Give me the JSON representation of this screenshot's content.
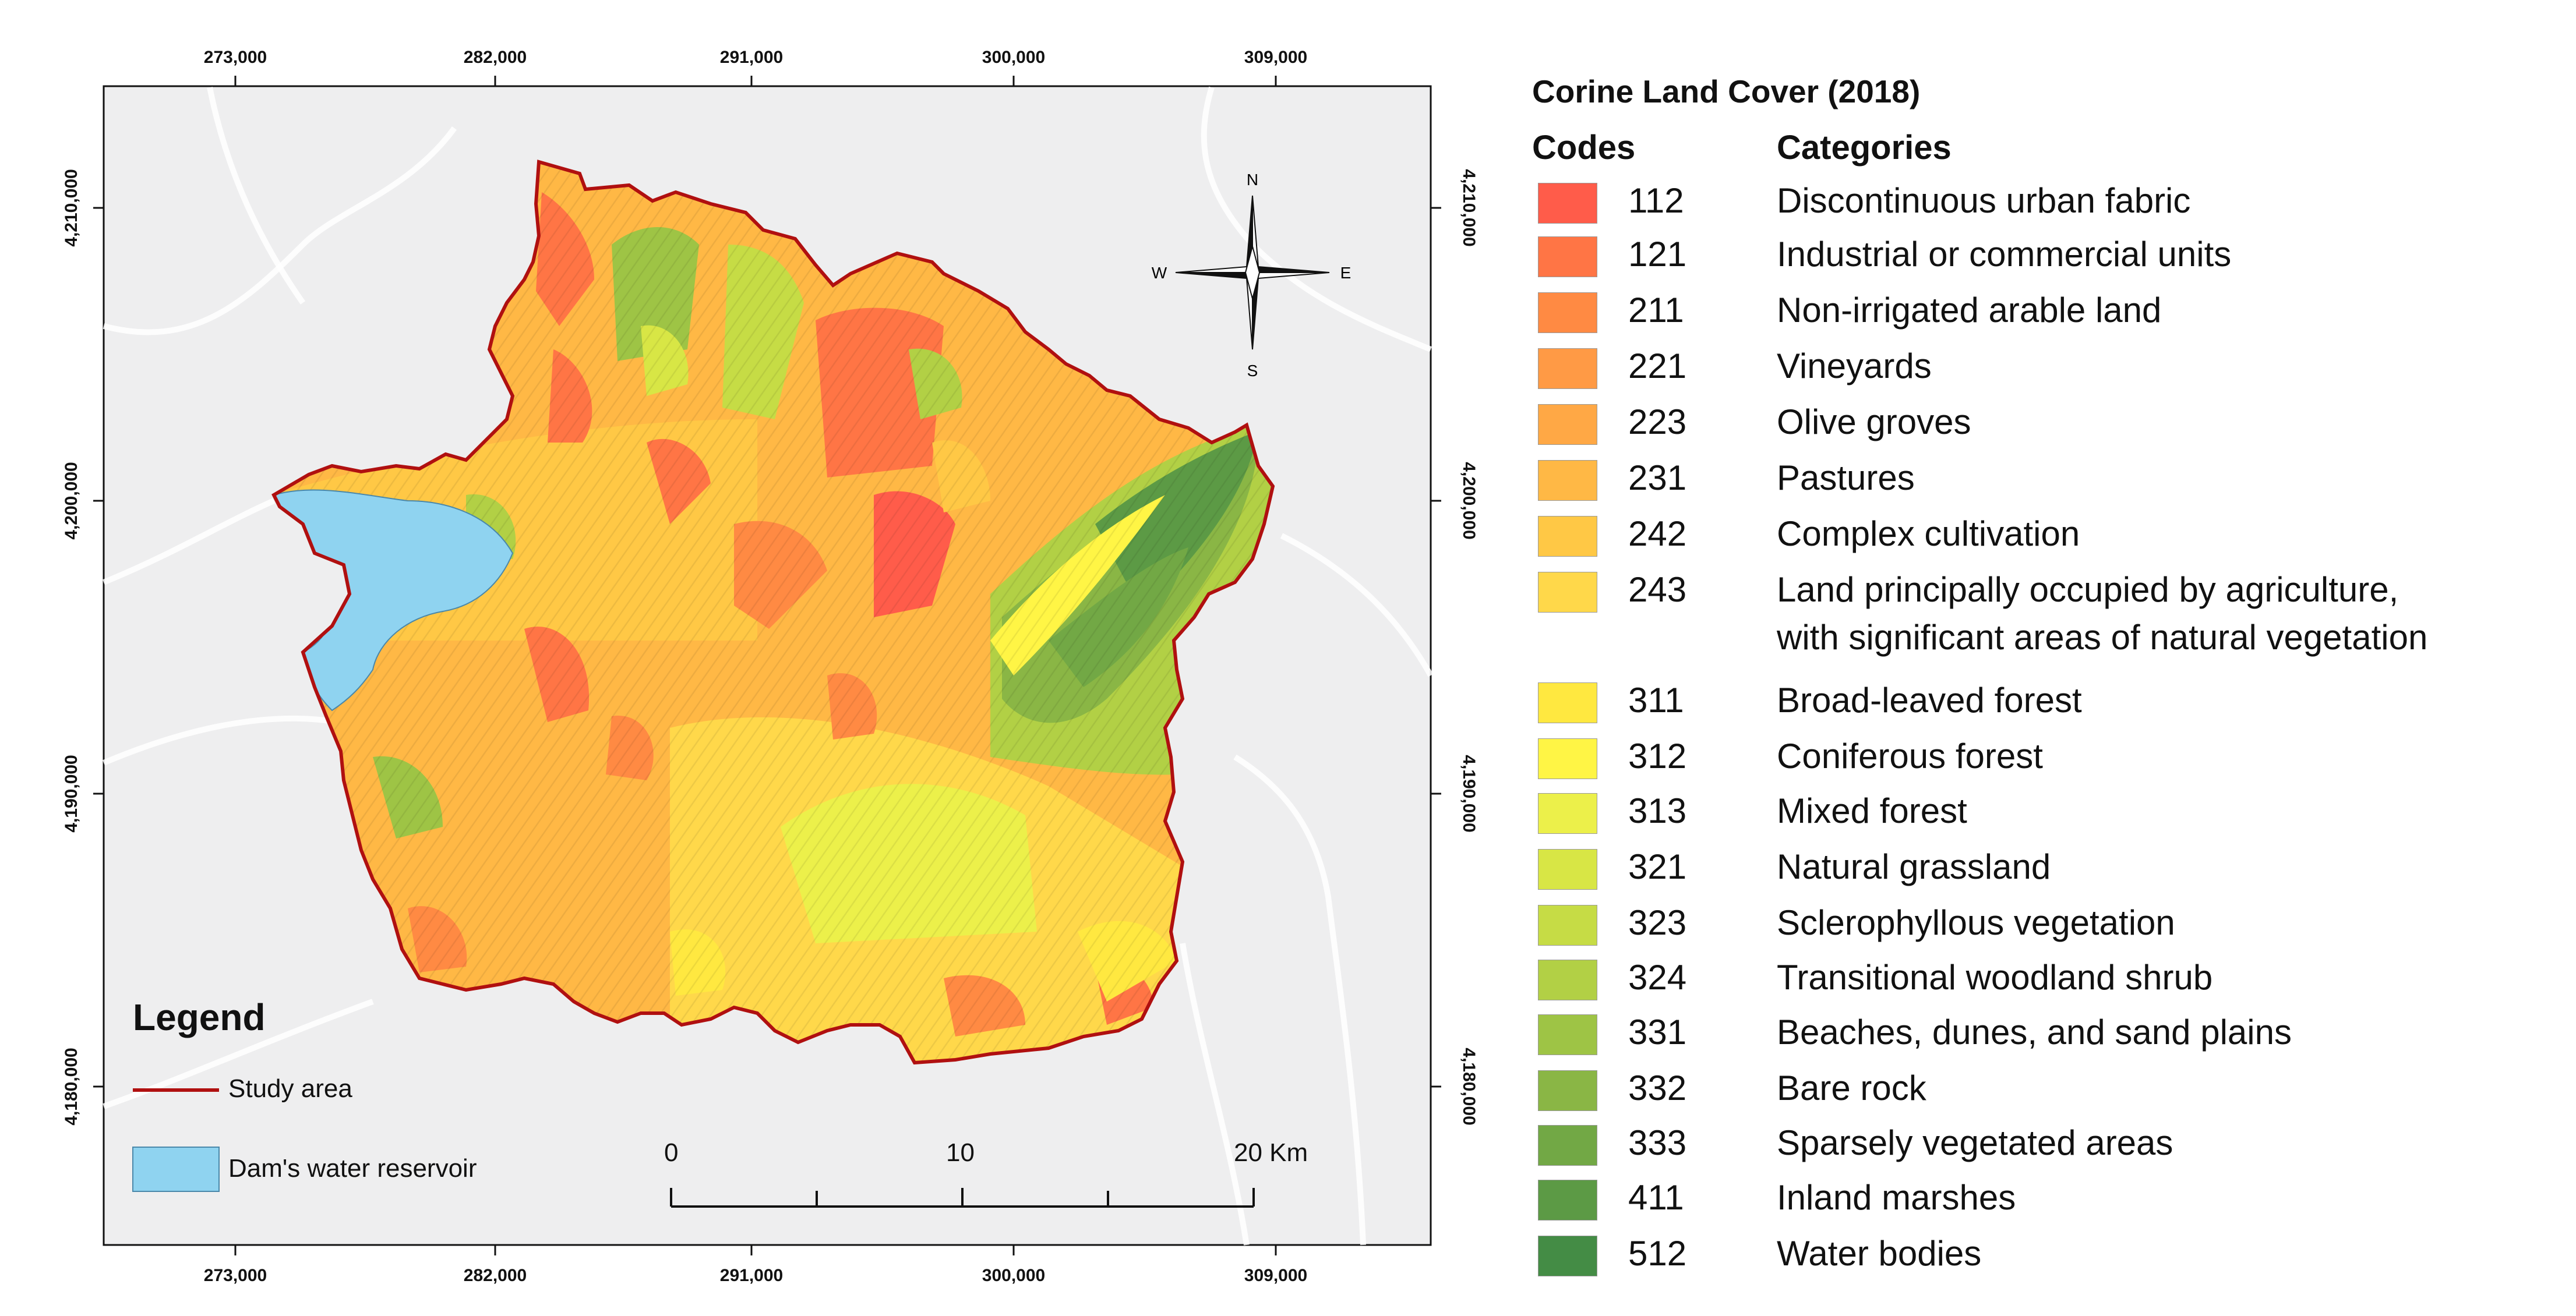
{
  "map": {
    "x_ticks": [
      "273,000",
      "282,000",
      "291,000",
      "300,000",
      "309,000"
    ],
    "y_ticks": [
      "4,210,000",
      "4,200,000",
      "4,190,000",
      "4,180,000"
    ],
    "north_arrow": {
      "n": "N",
      "s": "S",
      "e": "E",
      "w": "W"
    },
    "legend": {
      "title": "Legend",
      "study_area": "Study area",
      "reservoir": "Dam's water reservoir",
      "study_area_color": "#b01010",
      "reservoir_color": "#8fd3f0"
    },
    "scale_bar": {
      "labels": [
        "0",
        "10",
        "20 Km"
      ]
    }
  },
  "clc": {
    "title": "Corine Land Cover (2018)",
    "header_codes": "Codes",
    "header_categories": "Categories",
    "items": [
      {
        "code": "112",
        "label": "Discontinuous urban fabric",
        "color": "#ff5c4a"
      },
      {
        "code": "121",
        "label": "Industrial or commercial units",
        "color": "#ff7545"
      },
      {
        "code": "211",
        "label": "Non-irrigated arable land",
        "color": "#ff8a43"
      },
      {
        "code": "221",
        "label": "Vineyards",
        "color": "#ff9a45"
      },
      {
        "code": "223",
        "label": "Olive groves",
        "color": "#ffa845"
      },
      {
        "code": "231",
        "label": "Pastures",
        "color": "#ffb845"
      },
      {
        "code": "242",
        "label": "Complex cultivation",
        "color": "#ffc845"
      },
      {
        "code": "243",
        "label": "Land principally occupied by agriculture,",
        "label2": "with significant areas of natural vegetation",
        "color": "#ffd84a"
      },
      {
        "code": "311",
        "label": "Broad-leaved forest",
        "color": "#ffe840"
      },
      {
        "code": "312",
        "label": "Coniferous forest",
        "color": "#fff545"
      },
      {
        "code": "313",
        "label": "Mixed forest",
        "color": "#ecf04a"
      },
      {
        "code": "321",
        "label": "Natural grassland",
        "color": "#d8e645"
      },
      {
        "code": "323",
        "label": "Sclerophyllous vegetation",
        "color": "#c6dc45"
      },
      {
        "code": "324",
        "label": "Transitional woodland shrub",
        "color": "#b2d045"
      },
      {
        "code": "331",
        "label": "Beaches, dunes, and sand plains",
        "color": "#9ec445"
      },
      {
        "code": "332",
        "label": "Bare rock",
        "color": "#8ab645"
      },
      {
        "code": "333",
        "label": "Sparsely vegetated areas",
        "color": "#72a845"
      },
      {
        "code": "411",
        "label": "Inland marshes",
        "color": "#5c9a45"
      },
      {
        "code": "512",
        "label": "Water bodies",
        "color": "#448c45"
      }
    ]
  }
}
